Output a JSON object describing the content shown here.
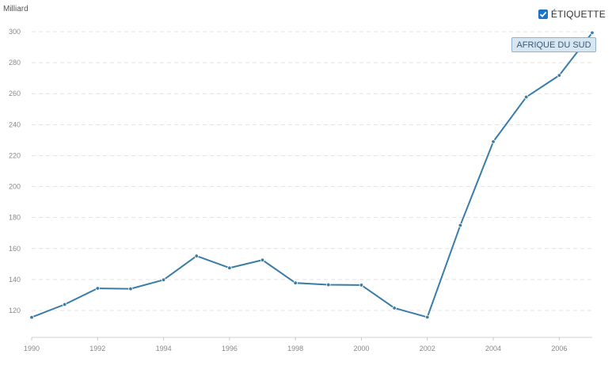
{
  "unit_label": "Milliard",
  "legend": {
    "checkbox_label": "ÉTIQUETTE",
    "checked": true
  },
  "series_tag": "AFRIQUE DU SUD",
  "colors": {
    "line": "#3a7ca8",
    "grid": "#e3e3e3",
    "accent": "#1a73c8"
  },
  "chart_data": {
    "type": "line",
    "ylabel": "Milliard",
    "xlim": [
      1990,
      2007
    ],
    "ylim": [
      110,
      300
    ],
    "x_ticks": [
      1990,
      1992,
      1994,
      1996,
      1998,
      2000,
      2002,
      2004,
      2006
    ],
    "y_ticks": [
      120,
      140,
      160,
      180,
      200,
      220,
      240,
      260,
      280,
      300
    ],
    "grid": true,
    "series": [
      {
        "name": "AFRIQUE DU SUD",
        "x": [
          1990,
          1991,
          1992,
          1993,
          1994,
          1995,
          1996,
          1997,
          1998,
          1999,
          2000,
          2001,
          2002,
          2003,
          2004,
          2005,
          2006,
          2007
        ],
        "y": [
          115.6,
          123.9,
          134.3,
          134.0,
          139.8,
          155.2,
          147.5,
          152.6,
          137.8,
          136.6,
          136.4,
          121.6,
          115.7,
          175.0,
          229.0,
          257.8,
          271.8,
          299.3
        ]
      }
    ]
  }
}
